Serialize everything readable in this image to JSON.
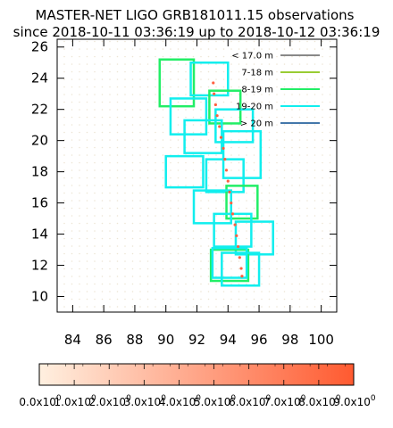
{
  "chart_data": {
    "type": "scatter",
    "title": "MASTER-NET LIGO GRB181011.15 observations",
    "subtitle": "since 2018-10-11 03:36:19 up to 2018-10-12 03:36:19",
    "xlabel": "",
    "ylabel": "",
    "xlim": [
      83,
      101
    ],
    "ylim": [
      9,
      26.5
    ],
    "x_ticks": [
      84,
      86,
      88,
      90,
      92,
      94,
      96,
      98,
      100
    ],
    "y_ticks": [
      10,
      12,
      14,
      16,
      18,
      20,
      22,
      24,
      26
    ],
    "grid": false,
    "legend_position": "top-right",
    "legend": [
      {
        "label": "< 17.0 m",
        "color": "#888888"
      },
      {
        "label": "7-18 m",
        "color": "#99cc33"
      },
      {
        "label": "8-19 m",
        "color": "#22ee66"
      },
      {
        "label": "19-20 m",
        "color": "#11eeee"
      },
      {
        "label": "> 20 m",
        "color": "#4477aa"
      }
    ],
    "fields": [
      {
        "ra_min": 89.6,
        "ra_max": 91.8,
        "dec_min": 22.2,
        "dec_max": 25.2,
        "class": "8-19 m",
        "color": "#22ee66"
      },
      {
        "ra_min": 91.6,
        "ra_max": 94.0,
        "dec_min": 22.9,
        "dec_max": 25.0,
        "class": "19-20 m",
        "color": "#11eeee"
      },
      {
        "ra_min": 92.8,
        "ra_max": 94.8,
        "dec_min": 21.1,
        "dec_max": 23.2,
        "class": "8-19 m",
        "color": "#22ee66"
      },
      {
        "ra_min": 90.3,
        "ra_max": 92.6,
        "dec_min": 20.4,
        "dec_max": 22.7,
        "class": "19-20 m",
        "color": "#11eeee"
      },
      {
        "ra_min": 93.2,
        "ra_max": 95.6,
        "dec_min": 19.9,
        "dec_max": 22.0,
        "class": "19-20 m",
        "color": "#11eeee"
      },
      {
        "ra_min": 91.2,
        "ra_max": 93.6,
        "dec_min": 19.2,
        "dec_max": 21.3,
        "class": "19-20 m",
        "color": "#11eeee"
      },
      {
        "ra_min": 93.7,
        "ra_max": 96.1,
        "dec_min": 17.6,
        "dec_max": 20.6,
        "class": "19-20 m",
        "color": "#11eeee"
      },
      {
        "ra_min": 90.0,
        "ra_max": 92.4,
        "dec_min": 17.0,
        "dec_max": 19.0,
        "class": "19-20 m",
        "color": "#11eeee"
      },
      {
        "ra_min": 92.6,
        "ra_max": 95.0,
        "dec_min": 16.7,
        "dec_max": 18.8,
        "class": "19-20 m",
        "color": "#11eeee"
      },
      {
        "ra_min": 93.9,
        "ra_max": 95.9,
        "dec_min": 15.0,
        "dec_max": 17.1,
        "class": "8-19 m",
        "color": "#22ee66"
      },
      {
        "ra_min": 91.8,
        "ra_max": 94.2,
        "dec_min": 14.7,
        "dec_max": 16.8,
        "class": "19-20 m",
        "color": "#11eeee"
      },
      {
        "ra_min": 93.1,
        "ra_max": 95.5,
        "dec_min": 13.2,
        "dec_max": 15.3,
        "class": "19-20 m",
        "color": "#11eeee"
      },
      {
        "ra_min": 94.5,
        "ra_max": 96.9,
        "dec_min": 12.7,
        "dec_max": 14.8,
        "class": "19-20 m",
        "color": "#11eeee"
      },
      {
        "ra_min": 92.9,
        "ra_max": 95.3,
        "dec_min": 11.0,
        "dec_max": 13.0,
        "class": "8-19 m",
        "color": "#22ee66"
      },
      {
        "ra_min": 93.0,
        "ra_max": 95.2,
        "dec_min": 11.2,
        "dec_max": 13.1,
        "class": "19-20 m",
        "color": "#11eeee"
      },
      {
        "ra_min": 93.6,
        "ra_max": 96.0,
        "dec_min": 10.7,
        "dec_max": 12.8,
        "class": "19-20 m",
        "color": "#11eeee"
      }
    ],
    "track_points": [
      {
        "ra": 93.05,
        "dec": 23.7
      },
      {
        "ra": 93.1,
        "dec": 23.0
      },
      {
        "ra": 93.2,
        "dec": 22.3
      },
      {
        "ra": 93.3,
        "dec": 21.6
      },
      {
        "ra": 93.45,
        "dec": 20.9
      },
      {
        "ra": 93.55,
        "dec": 20.2
      },
      {
        "ra": 93.7,
        "dec": 19.5
      },
      {
        "ra": 93.8,
        "dec": 18.8
      },
      {
        "ra": 93.9,
        "dec": 18.1
      },
      {
        "ra": 94.0,
        "dec": 17.4
      },
      {
        "ra": 94.1,
        "dec": 16.7
      },
      {
        "ra": 94.2,
        "dec": 16.0
      },
      {
        "ra": 94.3,
        "dec": 15.3
      },
      {
        "ra": 94.45,
        "dec": 14.6
      },
      {
        "ra": 94.55,
        "dec": 13.9
      },
      {
        "ra": 94.65,
        "dec": 13.2
      },
      {
        "ra": 94.75,
        "dec": 12.5
      },
      {
        "ra": 94.85,
        "dec": 11.8
      },
      {
        "ra": 94.9,
        "dec": 11.3
      }
    ],
    "track_color": "#ff6040",
    "colorbar": {
      "color_min": "#fff0e0",
      "color_max": "#ff5a30",
      "tick_labels": [
        "0.0x10",
        "1.0x10",
        "2.0x10",
        "3.0x10",
        "4.0x10",
        "5.0x10",
        "6.0x10",
        "7.0x10",
        "8.0x10",
        "9.0x10"
      ],
      "exponents": [
        "0",
        "0",
        "0",
        "0",
        "0",
        "0",
        "0",
        "0",
        "0",
        "0"
      ]
    }
  }
}
